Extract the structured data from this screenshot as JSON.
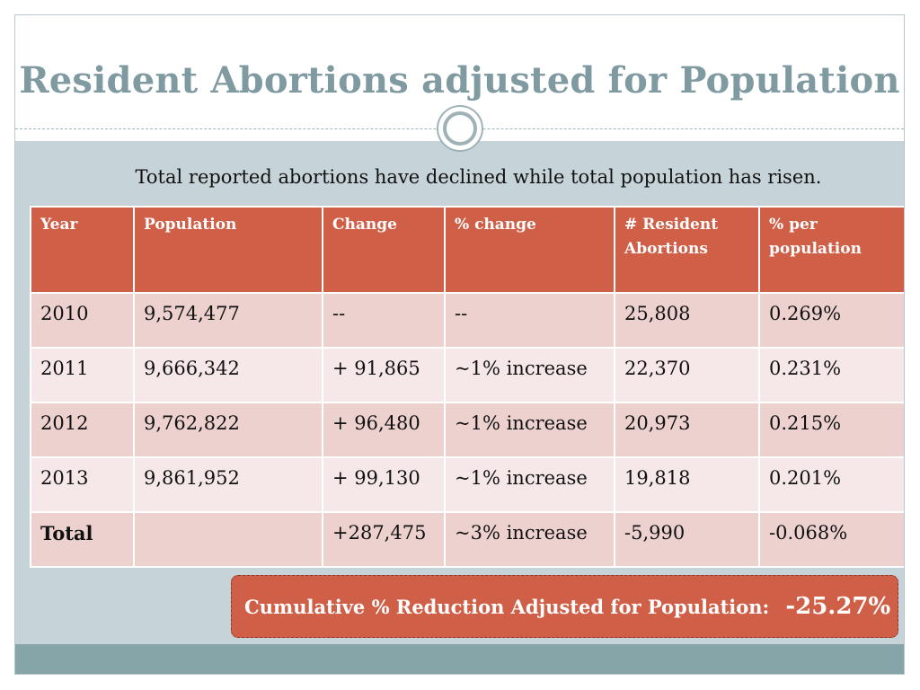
{
  "slide": {
    "title": "Resident Abortions adjusted for Population",
    "subtitle": "Total reported abortions have declined while total population has risen."
  },
  "table": {
    "headers": [
      "Year",
      "Population",
      "Change",
      "% change",
      "# Resident Abortions",
      "% per population"
    ],
    "rows": [
      [
        "2010",
        "9,574,477",
        "--",
        "--",
        "25,808",
        "0.269%"
      ],
      [
        "2011",
        "9,666,342",
        "+ 91,865",
        "~1% increase",
        "22,370",
        "0.231%"
      ],
      [
        "2012",
        "9,762,822",
        "+ 96,480",
        "~1% increase",
        "20,973",
        "0.215%"
      ],
      [
        "2013",
        "9,861,952",
        "+ 99,130",
        "~1% increase",
        "19,818",
        "0.201%"
      ],
      [
        "Total",
        "",
        "+287,475",
        "~3% increase",
        "-5,990",
        "-0.068%"
      ]
    ]
  },
  "callout": {
    "label": "Cumulative % Reduction Adjusted for Population:",
    "value": "-25.27%"
  },
  "colors": {
    "title": "#7f9aa1",
    "accent": "#d05f48",
    "band": "#c6d4d9",
    "bottom_band": "#86a5a9",
    "row_odd": "#ecd1cf",
    "row_even": "#f6e8e8"
  }
}
